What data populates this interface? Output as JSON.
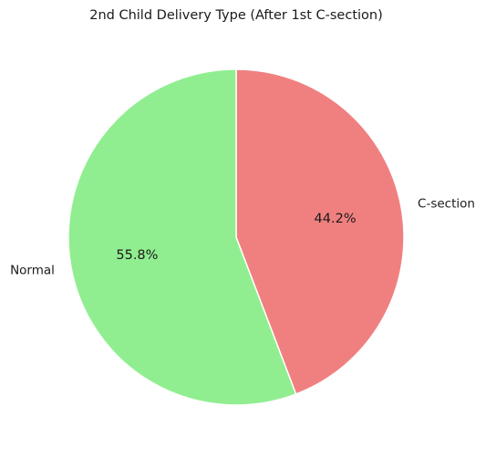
{
  "chart_data": {
    "type": "pie",
    "title": "2nd Child Delivery Type (After 1st C-section)",
    "start_angle_deg": 90,
    "direction": "clockwise",
    "slices": [
      {
        "label": "C-section",
        "value": 44.2,
        "pct_label": "44.2%",
        "color": "#f08080"
      },
      {
        "label": "Normal",
        "value": 55.8,
        "pct_label": "55.8%",
        "color": "#90ee90"
      }
    ],
    "edge_color": "#ffffff"
  }
}
